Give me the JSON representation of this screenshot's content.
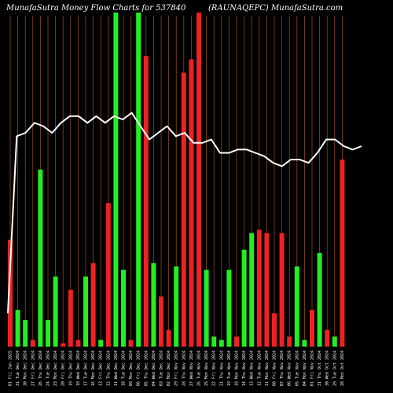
{
  "colors": {
    "background": "#000000",
    "gridline": "#a0521e",
    "up_bar": "#22ee22",
    "down_bar": "#ee2222",
    "line": "#ffffff",
    "text": "#ffffff"
  },
  "title_left": "MunafaSutra  Money Flow  Charts for 537840",
  "title_right": "(RAUNAQEPC) MunafaSutra.com",
  "chart_data": {
    "type": "bar",
    "title": "MunafaSutra  Money Flow  Charts for 537840",
    "subtitle": "(RAUNAQEPC) MunafaSutra.com",
    "categories": [
      "01 Fri Jan 2025",
      "31 Tue Dec 2024",
      "30 Mon Dec 2024",
      "27 Fri Dec 2024",
      "26 Thu Dec 2024",
      "24 Tue Dec 2024",
      "23 Mon Dec 2024",
      "20 Fri Dec 2024",
      "19 Thu Dec 2024",
      "18 Wed Dec 2024",
      "17 Tue Dec 2024",
      "16 Mon Dec 2024",
      "13 Fri Dec 2024",
      "12 Thu Dec 2024",
      "11 Wed Dec 2024",
      "10 Tue Dec 2024",
      "09 Mon Dec 2024",
      "06 Fri Dec 2024",
      "05 Thu Dec 2024",
      "04 Wed Dec 2024",
      "03 Tue Dec 2024",
      "02 Mon Dec 2024",
      "29 Fri Nov 2024",
      "28 Thu Nov 2024",
      "27 Wed Nov 2024",
      "26 Tue Nov 2024",
      "25 Mon Nov 2024",
      "22 Fri Nov 2024",
      "21 Thu Nov 2024",
      "19 Tue Nov 2024",
      "18 Mon Nov 2024",
      "14 Thu Nov 2024",
      "13 Wed Nov 2024",
      "12 Tue Nov 2024",
      "11 Mon Nov 2024",
      "08 Fri Nov 2024",
      "07 Thu Nov 2024",
      "06 Wed Nov 2024",
      "05 Tue Nov 2024",
      "04 Mon Nov 2024",
      "01 Fri Nov 2024",
      "31 Thu Oct 2024",
      "30 Wed Oct 2024",
      "29 Tue Oct 2024",
      "28 Mon Oct 2024"
    ],
    "bar_direction": [
      "down",
      "up",
      "up",
      "down",
      "up",
      "up",
      "up",
      "down",
      "down",
      "down",
      "up",
      "down",
      "up",
      "down",
      "up",
      "up",
      "down",
      "up",
      "down",
      "up",
      "down",
      "down",
      "up",
      "down",
      "down",
      "down",
      "up",
      "up",
      "up",
      "up",
      "down",
      "up",
      "up",
      "down",
      "down",
      "down",
      "down",
      "down",
      "up",
      "up",
      "down",
      "up",
      "down",
      "up",
      "down"
    ],
    "values": [
      0.32,
      0.11,
      0.08,
      0.02,
      0.53,
      0.08,
      0.21,
      0.01,
      0.17,
      0.02,
      0.21,
      0.25,
      0.02,
      0.43,
      1.0,
      0.23,
      0.02,
      1.0,
      0.87,
      0.25,
      0.15,
      0.05,
      0.24,
      0.82,
      0.86,
      1.0,
      0.23,
      0.03,
      0.02,
      0.23,
      0.03,
      0.29,
      0.34,
      0.35,
      0.34,
      0.1,
      0.34,
      0.03,
      0.24,
      0.02,
      0.11,
      0.28,
      0.05,
      0.03,
      0.56
    ],
    "bar_values_note": "",
    "line_values": [
      0.1,
      0.63,
      0.64,
      0.67,
      0.66,
      0.64,
      0.67,
      0.69,
      0.69,
      0.67,
      0.69,
      0.67,
      0.69,
      0.68,
      0.7,
      0.66,
      0.62,
      0.64,
      0.66,
      0.63,
      0.64,
      0.61,
      0.61,
      0.62,
      0.58,
      0.58,
      0.59,
      0.59,
      0.58,
      0.57,
      0.55,
      0.54,
      0.56,
      0.56,
      0.55,
      0.58,
      0.62,
      0.62,
      0.6,
      0.59,
      0.6
    ],
    "ylim": [
      0,
      1
    ],
    "xlabel": "",
    "ylabel": "",
    "grid": true
  }
}
